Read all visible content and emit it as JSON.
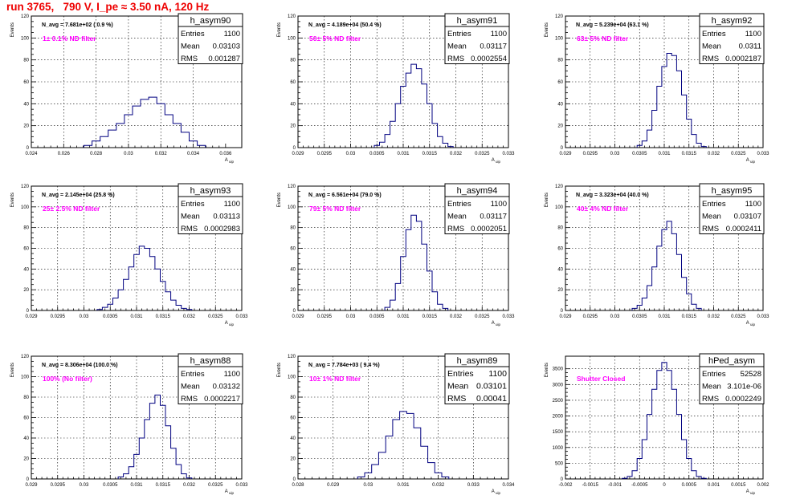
{
  "canvas_title": "run 3765,   790 V, I_pe ≈ 3.50 nA, 120 Hz",
  "colors": {
    "hist_line": "#000080",
    "label": "#ff00ff",
    "title": "#ee0000",
    "grid": "#000000",
    "frame": "#000000"
  },
  "chart_data": [
    {
      "type": "histogram",
      "name": "h_asym90",
      "ylabel": "Events",
      "xlabel": "A_uip",
      "xlim": [
        0.024,
        0.037
      ],
      "ylim": [
        0,
        120
      ],
      "xticks": [
        "0.024",
        "0.026",
        "0.028",
        "0.03",
        "0.032",
        "0.034",
        "0.036"
      ],
      "yticks": [
        "0",
        "20",
        "40",
        "60",
        "80",
        "100",
        "120"
      ],
      "navg": "N_avg = 7.681e+02 ( 0.9 %)",
      "label": "1± 0.1% ND filter",
      "stats": {
        "Entries": "1100",
        "Mean": "0.03103",
        "RMS": "0.001287"
      },
      "x": [
        0.0275,
        0.028,
        0.0285,
        0.029,
        0.0295,
        0.03,
        0.0305,
        0.031,
        0.0315,
        0.032,
        0.0325,
        0.033,
        0.0335,
        0.034,
        0.0345
      ],
      "values": [
        2,
        6,
        10,
        16,
        22,
        30,
        38,
        44,
        46,
        40,
        30,
        22,
        14,
        6,
        2
      ]
    },
    {
      "type": "histogram",
      "name": "h_asym91",
      "ylabel": "Events",
      "xlabel": "A_uip",
      "xlim": [
        0.029,
        0.033
      ],
      "ylim": [
        0,
        120
      ],
      "xticks": [
        "0.029",
        "0.0295",
        "0.03",
        "0.0305",
        "0.031",
        "0.0315",
        "0.032",
        "0.0325",
        "0.033"
      ],
      "yticks": [
        "0",
        "20",
        "40",
        "60",
        "80",
        "100",
        "120"
      ],
      "navg": "N_avg = 4.189e+04 (50.4 %)",
      "label": "50± 5% ND filter",
      "stats": {
        "Entries": "1100",
        "Mean": "0.03117",
        "RMS": "0.0002554"
      },
      "x": [
        0.0305,
        0.0306,
        0.0307,
        0.0308,
        0.0309,
        0.031,
        0.0311,
        0.0312,
        0.0313,
        0.0314,
        0.0315,
        0.0316,
        0.0317,
        0.0318,
        0.0319
      ],
      "values": [
        2,
        5,
        12,
        24,
        40,
        56,
        68,
        76,
        72,
        58,
        40,
        22,
        10,
        4,
        1
      ]
    },
    {
      "type": "histogram",
      "name": "h_asym92",
      "ylabel": "Events",
      "xlabel": "A_uip",
      "xlim": [
        0.029,
        0.033
      ],
      "ylim": [
        0,
        120
      ],
      "xticks": [
        "0.029",
        "0.0295",
        "0.03",
        "0.0305",
        "0.031",
        "0.0315",
        "0.032",
        "0.0325",
        "0.033"
      ],
      "yticks": [
        "0",
        "20",
        "40",
        "60",
        "80",
        "100",
        "120"
      ],
      "navg": "N_avg = 5.239e+04 (63.1 %)",
      "label": "63± 5% ND filter",
      "stats": {
        "Entries": "1100",
        "Mean": "0.0311",
        "RMS": "0.0002187"
      },
      "x": [
        0.0305,
        0.0306,
        0.0307,
        0.0308,
        0.0309,
        0.031,
        0.0311,
        0.0312,
        0.0313,
        0.0314,
        0.0315,
        0.0316,
        0.0317,
        0.0318
      ],
      "values": [
        2,
        6,
        16,
        34,
        56,
        74,
        86,
        84,
        70,
        48,
        26,
        12,
        4,
        1
      ]
    },
    {
      "type": "histogram",
      "name": "h_asym93",
      "ylabel": "Events",
      "xlabel": "A_uip",
      "xlim": [
        0.029,
        0.033
      ],
      "ylim": [
        0,
        120
      ],
      "xticks": [
        "0.029",
        "0.0295",
        "0.03",
        "0.0305",
        "0.031",
        "0.0315",
        "0.032",
        "0.0325",
        "0.033"
      ],
      "yticks": [
        "0",
        "20",
        "40",
        "60",
        "80",
        "100",
        "120"
      ],
      "navg": "N_avg = 2.145e+04 (25.8 %)",
      "label": "25± 2.5% ND filter",
      "stats": {
        "Entries": "1100",
        "Mean": "0.03113",
        "RMS": "0.0002983"
      },
      "x": [
        0.0303,
        0.0304,
        0.0305,
        0.0306,
        0.0307,
        0.0308,
        0.0309,
        0.031,
        0.0311,
        0.0312,
        0.0313,
        0.0314,
        0.0315,
        0.0316,
        0.0317,
        0.0318,
        0.0319,
        0.032
      ],
      "values": [
        1,
        3,
        6,
        12,
        20,
        30,
        42,
        54,
        62,
        60,
        52,
        40,
        28,
        18,
        10,
        5,
        2,
        1
      ]
    },
    {
      "type": "histogram",
      "name": "h_asym94",
      "ylabel": "Events",
      "xlabel": "A_uip",
      "xlim": [
        0.029,
        0.033
      ],
      "ylim": [
        0,
        120
      ],
      "xticks": [
        "0.029",
        "0.0295",
        "0.03",
        "0.0305",
        "0.031",
        "0.0315",
        "0.032",
        "0.0325",
        "0.033"
      ],
      "yticks": [
        "0",
        "20",
        "40",
        "60",
        "80",
        "100",
        "120"
      ],
      "navg": "N_avg = 6.561e+04 (79.0 %)",
      "label": "79± 5% ND filter",
      "stats": {
        "Entries": "1100",
        "Mean": "0.03117",
        "RMS": "0.0002051"
      },
      "x": [
        0.0307,
        0.0308,
        0.0309,
        0.031,
        0.0311,
        0.0312,
        0.0313,
        0.0314,
        0.0315,
        0.0316,
        0.0317,
        0.0318
      ],
      "values": [
        3,
        10,
        26,
        52,
        78,
        92,
        86,
        64,
        38,
        18,
        6,
        2
      ]
    },
    {
      "type": "histogram",
      "name": "h_asym95",
      "ylabel": "Events",
      "xlabel": "A_uip",
      "xlim": [
        0.029,
        0.033
      ],
      "ylim": [
        0,
        120
      ],
      "xticks": [
        "0.029",
        "0.0295",
        "0.03",
        "0.0305",
        "0.031",
        "0.0315",
        "0.032",
        "0.0325",
        "0.033"
      ],
      "yticks": [
        "0",
        "20",
        "40",
        "60",
        "80",
        "100",
        "120"
      ],
      "navg": "N_avg = 3.323e+04 (40.0 %)",
      "label": "40± 4% ND filter",
      "stats": {
        "Entries": "1100",
        "Mean": "0.03107",
        "RMS": "0.0002411"
      },
      "x": [
        0.0304,
        0.0305,
        0.0306,
        0.0307,
        0.0308,
        0.0309,
        0.031,
        0.0311,
        0.0312,
        0.0313,
        0.0314,
        0.0315,
        0.0316,
        0.0317
      ],
      "values": [
        2,
        5,
        12,
        24,
        42,
        62,
        78,
        86,
        74,
        54,
        32,
        16,
        6,
        2
      ]
    },
    {
      "type": "histogram",
      "name": "h_asym88",
      "ylabel": "Events",
      "xlabel": "A_uip",
      "xlim": [
        0.029,
        0.033
      ],
      "ylim": [
        0,
        120
      ],
      "xticks": [
        "0.029",
        "0.0295",
        "0.03",
        "0.0305",
        "0.031",
        "0.0315",
        "0.032",
        "0.0325",
        "0.033"
      ],
      "yticks": [
        "0",
        "20",
        "40",
        "60",
        "80",
        "100",
        "120"
      ],
      "navg": "N_avg = 8.306e+04 (100.0 %)",
      "label": "100% (No filter)",
      "stats": {
        "Entries": "1100",
        "Mean": "0.03132",
        "RMS": "0.0002217"
      },
      "x": [
        0.0307,
        0.0308,
        0.0309,
        0.031,
        0.0311,
        0.0312,
        0.0313,
        0.0314,
        0.0315,
        0.0316,
        0.0317,
        0.0318,
        0.0319,
        0.032
      ],
      "values": [
        2,
        5,
        12,
        24,
        40,
        58,
        74,
        82,
        72,
        52,
        30,
        14,
        5,
        1
      ]
    },
    {
      "type": "histogram",
      "name": "h_asym89",
      "ylabel": "Events",
      "xlabel": "A_uip",
      "xlim": [
        0.028,
        0.034
      ],
      "ylim": [
        0,
        120
      ],
      "xticks": [
        "0.028",
        "0.029",
        "0.03",
        "0.031",
        "0.032",
        "0.033",
        "0.034"
      ],
      "yticks": [
        "0",
        "20",
        "40",
        "60",
        "80",
        "100",
        "120"
      ],
      "navg": "N_avg = 7.784e+03 ( 9.4 %)",
      "label": "10± 1% ND filter",
      "stats": {
        "Entries": "1100",
        "Mean": "0.03101",
        "RMS": "0.00041"
      },
      "x": [
        0.0298,
        0.03,
        0.0302,
        0.0304,
        0.0306,
        0.0308,
        0.031,
        0.0312,
        0.0314,
        0.0316,
        0.0318,
        0.032,
        0.0322
      ],
      "values": [
        2,
        6,
        14,
        26,
        42,
        58,
        66,
        64,
        50,
        32,
        16,
        6,
        2
      ]
    },
    {
      "type": "histogram",
      "name": "hPed_asym",
      "ylabel": "Events",
      "xlabel": "A_uip",
      "xlim": [
        -0.002,
        0.002
      ],
      "ylim": [
        0,
        3900
      ],
      "xticks": [
        "-0.002",
        "-0.0015",
        "-0.001",
        "-0.0005",
        "0",
        "0.0005",
        "0.001",
        "0.0015",
        "0.002"
      ],
      "yticks": [
        "0",
        "500",
        "1000",
        "1500",
        "2000",
        "2500",
        "3000",
        "3500"
      ],
      "navg": "",
      "label": "Shutter Closed",
      "stats": {
        "Entries": "52528",
        "Mean": "3.101e-06",
        "RMS": "0.0002249"
      },
      "x": [
        -0.0008,
        -0.0007,
        -0.0006,
        -0.0005,
        -0.0004,
        -0.0003,
        -0.0002,
        -0.0001,
        0,
        0.0001,
        0.0002,
        0.0003,
        0.0004,
        0.0005,
        0.0006,
        0.0007,
        0.0008
      ],
      "values": [
        20,
        80,
        260,
        650,
        1250,
        2050,
        2850,
        3450,
        3700,
        3450,
        2850,
        2050,
        1250,
        650,
        260,
        80,
        20
      ]
    }
  ]
}
